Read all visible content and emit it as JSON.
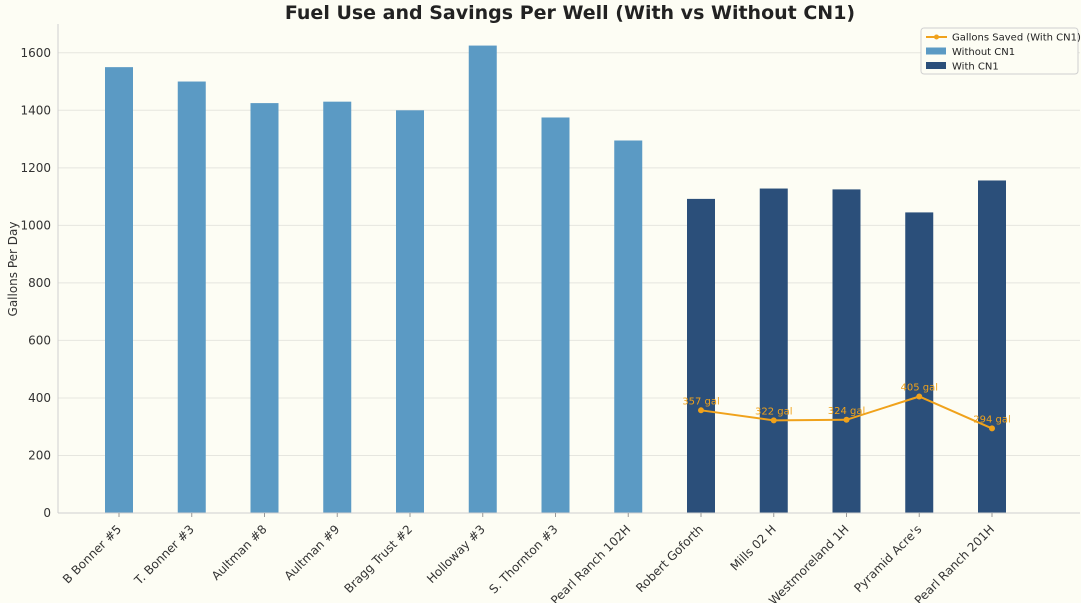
{
  "chart_data": {
    "type": "bar",
    "title": "Fuel Use and Savings Per Well (With vs Without CN1)",
    "xlabel": "",
    "ylabel": "Gallons Per Day",
    "ylim": [
      0,
      1700
    ],
    "yticks": [
      0,
      200,
      400,
      600,
      800,
      1000,
      1200,
      1400,
      1600
    ],
    "grid": true,
    "legend_position": "top-right",
    "categories": [
      "B Bonner #5",
      "T. Bonner #3",
      "Aultman #8",
      "Aultman #9",
      "Bragg Trust #2",
      "Holloway #3",
      "S. Thornton #3",
      "Pearl Ranch 102H",
      "Robert Goforth",
      "Mills 02 H",
      "Westmoreland 1H",
      "Pyramid Acre's",
      "Pearl Ranch 201H"
    ],
    "series": [
      {
        "name": "Without CN1",
        "type": "bar",
        "color": "#5b9ac4",
        "values": [
          1550,
          1500,
          1425,
          1430,
          1400,
          1625,
          1375,
          1295,
          null,
          null,
          null,
          null,
          null
        ]
      },
      {
        "name": "With CN1",
        "type": "bar",
        "color": "#2b4f7a",
        "values": [
          null,
          null,
          null,
          null,
          null,
          null,
          null,
          null,
          1092,
          1128,
          1125,
          1045,
          1156
        ]
      },
      {
        "name": "Gallons Saved (With CN1)",
        "type": "line",
        "color": "#f0a21b",
        "values": [
          null,
          null,
          null,
          null,
          null,
          null,
          null,
          null,
          357,
          322,
          324,
          405,
          294
        ],
        "labels": [
          null,
          null,
          null,
          null,
          null,
          null,
          null,
          null,
          "357 gal",
          "322 gal",
          "324 gal",
          "405 gal",
          "294 gal"
        ]
      }
    ]
  }
}
